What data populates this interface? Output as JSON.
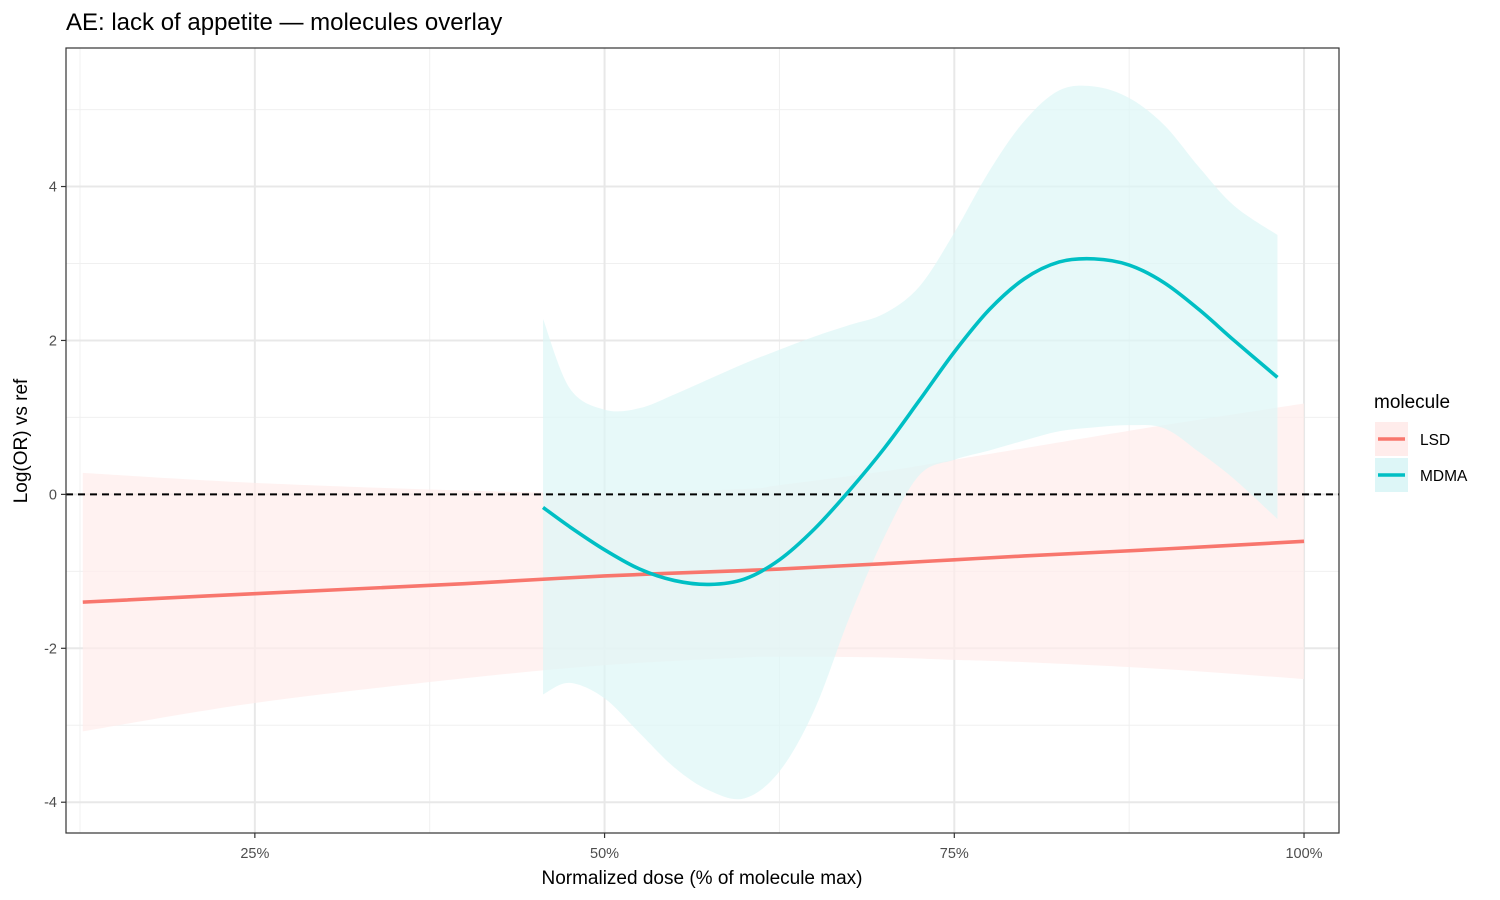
{
  "chart_data": {
    "type": "line",
    "title": "AE: lack of appetite — molecules overlay",
    "xlabel": "Normalized dose (% of molecule max)",
    "ylabel": "Log(OR) vs ref",
    "xlim": [
      11.5,
      102.5
    ],
    "ylim": [
      -4.4,
      5.8
    ],
    "x_ticks": [
      25,
      50,
      75,
      100
    ],
    "x_tick_labels": [
      "25%",
      "50%",
      "75%",
      "100%"
    ],
    "y_ticks": [
      -4,
      -2,
      0,
      2,
      4
    ],
    "y_tick_labels": [
      "-4",
      "-2",
      "0",
      "2",
      "4"
    ],
    "reference_line": {
      "y": 0,
      "style": "dashed"
    },
    "grid": true,
    "legend": {
      "title": "molecule",
      "position": "right"
    },
    "series": [
      {
        "name": "LSD",
        "color": "#F8766D",
        "band_color": "#FFECEB",
        "x": [
          12.7,
          25,
          40,
          50,
          60,
          62.5,
          70,
          75,
          80,
          90,
          100
        ],
        "y": [
          -1.4,
          -1.29,
          -1.16,
          -1.06,
          -0.99,
          -0.97,
          -0.9,
          -0.85,
          -0.8,
          -0.71,
          -0.61
        ],
        "lower": [
          -3.08,
          -2.71,
          -2.39,
          -2.22,
          -2.12,
          -2.11,
          -2.12,
          -2.15,
          -2.18,
          -2.27,
          -2.4
        ],
        "upper": [
          0.28,
          0.15,
          0.05,
          0.02,
          0.07,
          0.12,
          0.3,
          0.45,
          0.6,
          0.9,
          1.18
        ]
      },
      {
        "name": "MDMA",
        "color": "#00BFC4",
        "band_color": "#DDF6F7",
        "x": [
          45.6,
          47.5,
          50,
          52.5,
          55,
          57.5,
          60,
          62.5,
          65,
          67.5,
          70,
          72.5,
          75,
          77.5,
          80,
          82.5,
          85,
          87.5,
          90,
          92.5,
          95,
          98.1
        ],
        "y": [
          -0.17,
          -0.42,
          -0.72,
          -0.97,
          -1.12,
          -1.17,
          -1.1,
          -0.85,
          -0.45,
          0.05,
          0.6,
          1.22,
          1.85,
          2.4,
          2.8,
          3.02,
          3.06,
          2.98,
          2.75,
          2.4,
          2.0,
          1.52
        ],
        "lower": [
          -2.6,
          -2.45,
          -2.65,
          -3.1,
          -3.55,
          -3.85,
          -3.95,
          -3.6,
          -2.8,
          -1.6,
          -0.55,
          0.25,
          0.45,
          0.57,
          0.7,
          0.82,
          0.87,
          0.9,
          0.86,
          0.55,
          0.2,
          -0.32
        ],
        "upper": [
          2.28,
          1.38,
          1.1,
          1.12,
          1.3,
          1.5,
          1.7,
          1.88,
          2.05,
          2.2,
          2.35,
          2.7,
          3.4,
          4.2,
          4.85,
          5.25,
          5.3,
          5.15,
          4.8,
          4.25,
          3.75,
          3.37
        ]
      }
    ]
  }
}
